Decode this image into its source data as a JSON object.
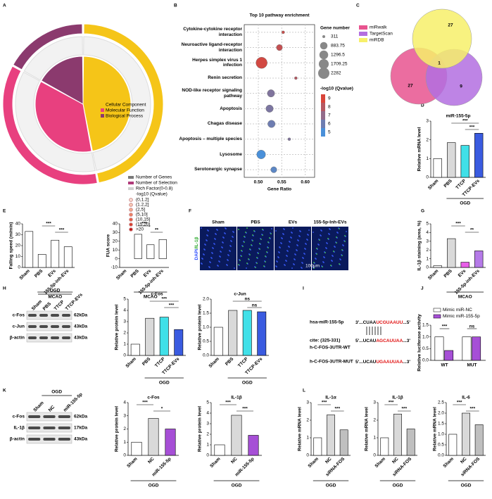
{
  "panel_labels": [
    "A",
    "B",
    "C",
    "D",
    "E",
    "F",
    "G",
    "H",
    "I",
    "J",
    "K",
    "L"
  ],
  "chart_data": [
    {
      "type": "circos",
      "categories": [
        "Cellular Component",
        "Molecular Function",
        "Biological Process"
      ],
      "values": [
        47,
        36,
        17
      ],
      "colors": [
        "#f5c518",
        "#e8407f",
        "#8b3a6e"
      ],
      "legend": [
        {
          "label": "Number of Genes",
          "color": "#7a7a7a"
        },
        {
          "label": "Number of Selection",
          "color": "#b03a7a"
        },
        {
          "label": "Rich Factor(0-0.8)",
          "color": "#d0d0d0"
        }
      ],
      "qvalue_title": "-log10 (Qvalue)",
      "qvalue_bins": [
        {
          "label": "(0,1.2]",
          "color": "#fde8dc"
        },
        {
          "label": "(1.2,2]",
          "color": "#fbd0b8"
        },
        {
          "label": "(2,5]",
          "color": "#f8b090"
        },
        {
          "label": "(5,10]",
          "color": "#f08060"
        },
        {
          "label": "(10,15]",
          "color": "#e85a40"
        },
        {
          "label": "(15,20]",
          "color": "#d83a28"
        },
        {
          "label": ">20",
          "color": "#c01010"
        }
      ]
    },
    {
      "type": "bubble",
      "title": "Top 10 pathway enrichment",
      "xlabel": "Gene Ratio",
      "categories": [
        "Cytokine-cytokine receptor interaction",
        "Neuroactive ligand-receptor interaction",
        "Herpes simplex virus 1 infection",
        "Renin secretion",
        "NOD-like receptor signaling pathway",
        "Apoptosis",
        "Chagas disease",
        "Apoptosis – multiple species",
        "Lysosome",
        "Serotonergic synapse"
      ],
      "x": [
        0.553,
        0.545,
        0.507,
        0.58,
        0.527,
        0.524,
        0.528,
        0.566,
        0.506,
        0.533
      ],
      "sizes": [
        311,
        600,
        2282,
        311,
        883.75,
        883.75,
        883.75,
        311,
        1296.5,
        600
      ],
      "qvalues": [
        8.6,
        8.4,
        8.8,
        8,
        6.5,
        6.4,
        6,
        6.5,
        5,
        5.5
      ],
      "xlim": [
        0.47,
        0.62
      ],
      "xticks": [
        {
          "value": 0.5,
          "label": "0.50"
        },
        {
          "value": 0.55,
          "label": "0.55"
        },
        {
          "value": 0.6,
          "label": "0.60"
        }
      ],
      "size_title": "Gene number",
      "size_ticks": [
        311,
        883.75,
        1296.5,
        1709.25,
        2282
      ],
      "color_title": "-log10 (Qvalue)",
      "color_ticks": [
        9,
        8,
        7,
        6,
        5
      ],
      "color_low": "#4a90d9",
      "color_high": "#d9453a"
    },
    {
      "type": "bar",
      "title": "miR-155-5p",
      "ylabel": "Relative mRNA level",
      "categories": [
        "Sham",
        "PBS",
        "TTCP",
        "TTCP-EVs"
      ],
      "values": [
        1,
        1.85,
        1.7,
        2.35
      ],
      "colors": [
        "#ffffff",
        "#d9d9d9",
        "#40e0e8",
        "#3a5be0"
      ],
      "ylim": [
        0,
        3
      ],
      "yticks": [
        0,
        1,
        2,
        3
      ],
      "significance": [
        "***",
        "***"
      ],
      "group": "OGD"
    },
    {
      "type": "bar",
      "ylabel": "Falling speed (m/min)",
      "categories": [
        "Sham",
        "PBS",
        "EVs",
        "155-5p-inh-EVs"
      ],
      "values": [
        33,
        12,
        25,
        19
      ],
      "colors": [
        "#ffffff",
        "#ffffff",
        "#ffffff",
        "#ffffff"
      ],
      "ylim": [
        0,
        40
      ],
      "yticks": [
        0,
        10,
        20,
        30,
        40
      ],
      "significance": [
        "***",
        "***"
      ],
      "group": "MCAO"
    },
    {
      "type": "bar",
      "ylabel": "FUA score",
      "categories": [
        "Sham",
        "PBS",
        "EVs",
        "155-5p-inh-EVs"
      ],
      "values": [
        0,
        28,
        16,
        22
      ],
      "colors": [
        "#ffffff",
        "#ffffff",
        "#ffffff",
        "#ffffff"
      ],
      "ylim": [
        -10,
        40
      ],
      "yticks": [
        -10,
        0,
        10,
        20,
        30,
        40
      ],
      "significance": [
        "***",
        "**"
      ],
      "group": "MCAO"
    },
    {
      "type": "bar",
      "ylabel": "IL-1β staining (area, %)",
      "categories": [
        "Sham",
        "PBS",
        "EVs",
        "155-5p-inh-EVs"
      ],
      "values": [
        0.2,
        3.3,
        0.6,
        1.9
      ],
      "colors": [
        "#ffffff",
        "#d9d9d9",
        "#e85ee8",
        "#b57ae8"
      ],
      "ylim": [
        0,
        5
      ],
      "yticks": [
        0,
        1,
        2,
        3,
        4,
        5
      ],
      "significance": [
        "***",
        "**"
      ],
      "group": "MCAO"
    },
    {
      "type": "bar",
      "title": "c-Fos",
      "ylabel": "Relative protein level",
      "categories": [
        "Sham",
        "PBS",
        "TTCP",
        "TTCP-EVs"
      ],
      "values": [
        1,
        3.3,
        3.4,
        2.3
      ],
      "colors": [
        "#ffffff",
        "#d9d9d9",
        "#40e0e8",
        "#3a5be0"
      ],
      "ylim": [
        0,
        5
      ],
      "yticks": [
        0,
        1,
        2,
        3,
        4,
        5
      ],
      "significance": [
        "***",
        "***"
      ],
      "group": "OGD"
    },
    {
      "type": "bar",
      "title": "c-Jun",
      "ylabel": "Relative protein level",
      "categories": [
        "Sham",
        "PBS",
        "TTCP",
        "TTCP-EVs"
      ],
      "values": [
        1,
        1.6,
        1.6,
        1.55
      ],
      "colors": [
        "#ffffff",
        "#d9d9d9",
        "#40e0e8",
        "#3a5be0"
      ],
      "ylim": [
        0,
        2
      ],
      "yticks": [
        {
          "value": 0,
          "label": "0.0"
        },
        {
          "value": 0.5,
          "label": "0.5"
        },
        {
          "value": 1,
          "label": "1.0"
        },
        {
          "value": 1.5,
          "label": "1.5"
        },
        {
          "value": 2,
          "label": "2.0"
        }
      ],
      "significance": [
        "ns",
        "ns"
      ],
      "group": "OGD"
    },
    {
      "type": "grouped_bar",
      "ylabel": "Relative luciferase activity",
      "categories": [
        "WT",
        "MUT"
      ],
      "series": [
        {
          "name": "Mimic miR-NC",
          "color": "#ffffff",
          "values": [
            1,
            1
          ]
        },
        {
          "name": "Mimic miR-155-5p",
          "color": "#a64fd6",
          "values": [
            0.42,
            1
          ]
        }
      ],
      "ylim": [
        0,
        1.5
      ],
      "yticks": [
        {
          "value": 0,
          "label": "0.0"
        },
        {
          "value": 0.5,
          "label": "0.5"
        },
        {
          "value": 1,
          "label": "1.0"
        },
        {
          "value": 1.5,
          "label": "1.5"
        }
      ],
      "significance": [
        "***",
        "ns"
      ]
    },
    {
      "type": "bar",
      "title": "c-Fos",
      "ylabel": "Relative protein level",
      "categories": [
        "Sham",
        "NC",
        "miR-155-5p"
      ],
      "values": [
        1,
        2.8,
        2
      ],
      "colors": [
        "#ffffff",
        "#d9d9d9",
        "#a64fd6"
      ],
      "ylim": [
        0,
        4
      ],
      "yticks": [
        0,
        1,
        2,
        3,
        4
      ],
      "significance": [
        "***",
        "*"
      ],
      "group": "OGD"
    },
    {
      "type": "bar",
      "title": "IL-1β",
      "ylabel": "Relative protein level",
      "categories": [
        "Sham",
        "NC",
        "miR-155-5p"
      ],
      "values": [
        1,
        3.8,
        1.9
      ],
      "colors": [
        "#ffffff",
        "#d9d9d9",
        "#a64fd6"
      ],
      "ylim": [
        0,
        5
      ],
      "yticks": [
        0,
        1,
        2,
        3,
        4,
        5
      ],
      "significance": [
        "***",
        "***"
      ],
      "group": "OGD"
    },
    {
      "type": "bar",
      "title": "IL-1α",
      "ylabel": "Relative mRNA level",
      "categories": [
        "Sham",
        "NC",
        "siRNA-FOS"
      ],
      "values": [
        1,
        2.3,
        1.45
      ],
      "colors": [
        "#ffffff",
        "#d9d9d9",
        "#bfbfbf"
      ],
      "ylim": [
        0,
        3
      ],
      "yticks": [
        0,
        1,
        2,
        3
      ],
      "significance": [
        "***",
        "***"
      ],
      "group": "OGD"
    },
    {
      "type": "bar",
      "title": "IL-1β",
      "ylabel": "Relative mRNA level",
      "categories": [
        "Sham",
        "NC",
        "siRNA-FOS"
      ],
      "values": [
        1,
        2.35,
        1.5
      ],
      "colors": [
        "#ffffff",
        "#d9d9d9",
        "#bfbfbf"
      ],
      "ylim": [
        0,
        3
      ],
      "yticks": [
        0,
        1,
        2,
        3
      ],
      "significance": [
        "***",
        "***"
      ],
      "group": "OGD"
    },
    {
      "type": "bar",
      "title": "IL-6",
      "ylabel": "Relative mRNA level",
      "categories": [
        "Sham",
        "NC",
        "siRNA-FOS"
      ],
      "values": [
        1,
        2,
        1.45
      ],
      "colors": [
        "#ffffff",
        "#d9d9d9",
        "#bfbfbf"
      ],
      "ylim": [
        0,
        2.5
      ],
      "yticks": [
        {
          "value": 0,
          "label": "0.0"
        },
        {
          "value": 0.5,
          "label": "0.5"
        },
        {
          "value": 1,
          "label": "1.0"
        },
        {
          "value": 1.5,
          "label": "1.5"
        },
        {
          "value": 2,
          "label": "2.0"
        },
        {
          "value": 2.5,
          "label": "2.5"
        }
      ],
      "significance": [
        "***",
        "***"
      ],
      "group": "OGD"
    }
  ],
  "venn": {
    "sets": [
      {
        "name": "miRwalk",
        "color": "#e8538f"
      },
      {
        "name": "TargetScan",
        "color": "#b36ee0"
      },
      {
        "name": "miRDB",
        "color": "#f7f06a"
      }
    ],
    "counts": [
      27,
      1,
      27,
      9
    ]
  },
  "images": {
    "titles": [
      "Sham",
      "PBS",
      "EVs",
      "155-5p-Inh-EVs"
    ],
    "channels": [
      "DAPI",
      "/IL-1β"
    ],
    "scale": "100μm"
  },
  "blots": [
    {
      "group": "OGD",
      "lanes": [
        "Sham",
        "PBS",
        "TTCP",
        "TTCP-EVs"
      ],
      "rows": [
        {
          "name": "c-Fos",
          "size": "62kDa"
        },
        {
          "name": "c-Jun",
          "size": "43kDa"
        },
        {
          "name": "β-actin",
          "size": "43kDa"
        }
      ]
    },
    {
      "group": "OGD",
      "lanes": [
        "Sham",
        "NC",
        "miR-155-5p"
      ],
      "rows": [
        {
          "name": "c-Fos",
          "size": "62kDa"
        },
        {
          "name": "IL-1β",
          "size": "17kDa"
        },
        {
          "name": "β-actin",
          "size": "43kDa"
        }
      ]
    }
  ],
  "sequence": {
    "mirna": "hsa-miR-155-5p",
    "mirna_seq": [
      "3'...CUAA",
      "UCGUAAUU",
      "...5'"
    ],
    "site": "cite: (325-331)",
    "wt": "h-C-FOS-3UTR-WT",
    "wt_seq": [
      "5'...UCAU",
      "AGCAUUAA",
      "...3'"
    ],
    "mut": "h-C-FOS-3UTR-MUT",
    "mut_seq": [
      "5'...UCAU",
      "UGAAUUAA",
      "...3'"
    ]
  }
}
